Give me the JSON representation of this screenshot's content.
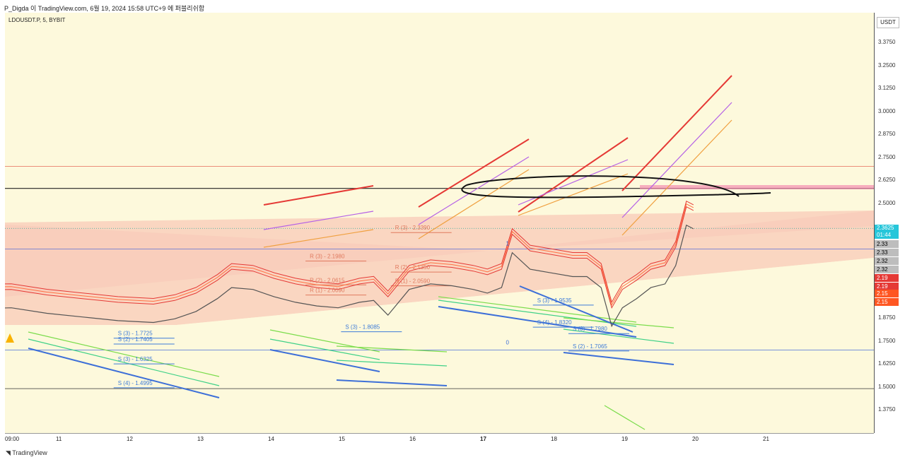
{
  "header": {
    "watermark_text": "P_Digda 이 TradingView.com, 6월 19, 2024 15:58 UTC+9 에 퍼블리쉬함"
  },
  "chart_data": {
    "type": "line",
    "title": "LDOUSDT.P, 5, BYBIT",
    "currency": "USDT",
    "x_ticks": [
      "09:00",
      "11",
      "12",
      "13",
      "14",
      "15",
      "16",
      "17",
      "18",
      "19",
      "20",
      "21"
    ],
    "y_ticks": [
      "3.3750",
      "3.2500",
      "3.1250",
      "3.0000",
      "2.8750",
      "2.7500",
      "2.6250",
      "2.5000",
      "1.8750",
      "1.7500",
      "1.6250",
      "1.5000",
      "1.3750"
    ],
    "ylim": [
      1.3,
      3.5
    ],
    "last_price": {
      "price": "2.3625",
      "countdown": "01:44",
      "color": "#26c6da"
    },
    "price_badges": [
      {
        "text": "2.33",
        "bg": "#bdbdbd",
        "fg": "#000"
      },
      {
        "text": "2.32",
        "bg": "#bdbdbd",
        "fg": "#000"
      },
      {
        "text": "2.19",
        "bg": "#e53935",
        "fg": "#fff"
      },
      {
        "text": "2.15",
        "bg": "#ff5722",
        "fg": "#fff"
      }
    ],
    "horizontal_levels": [
      2.7,
      2.58,
      1.7,
      1.49,
      2.25
    ],
    "level_labels": [
      {
        "text": "R (3) - 2.3390",
        "x": 15.4,
        "y": 2.355,
        "color": "#e07a5f"
      },
      {
        "text": "R (3) - 2.1980",
        "x": 14.2,
        "y": 2.2,
        "color": "#e07a5f"
      },
      {
        "text": "R (2) - 2.1350",
        "x": 15.4,
        "y": 2.14,
        "color": "#e07a5f"
      },
      {
        "text": "R (2) - 2.0615",
        "x": 14.2,
        "y": 2.07,
        "color": "#e07a5f"
      },
      {
        "text": "R (1) - 2.0590",
        "x": 15.4,
        "y": 2.065,
        "color": "#e07a5f"
      },
      {
        "text": "R (1) - 2.0090",
        "x": 14.2,
        "y": 2.015,
        "color": "#e07a5f"
      },
      {
        "text": "S (3) - 1.7725",
        "x": 11.5,
        "y": 1.78,
        "color": "#3d7bd9"
      },
      {
        "text": "S (2) - 1.7405",
        "x": 11.5,
        "y": 1.748,
        "color": "#3d7bd9"
      },
      {
        "text": "S (3) - 1.6325",
        "x": 11.5,
        "y": 1.64,
        "color": "#3d7bd9"
      },
      {
        "text": "S (4) - 1.4995",
        "x": 11.5,
        "y": 1.51,
        "color": "#3d7bd9"
      },
      {
        "text": "S (3) - 1.8085",
        "x": 14.7,
        "y": 1.815,
        "color": "#3d7bd9"
      },
      {
        "text": "S (4) - 1.8320",
        "x": 17.4,
        "y": 1.84,
        "color": "#3d7bd9"
      },
      {
        "text": "S (3) - 1.9535",
        "x": 17.4,
        "y": 1.96,
        "color": "#3d7bd9"
      },
      {
        "text": "S (3) - 1.7980",
        "x": 17.9,
        "y": 1.805,
        "color": "#3d7bd9"
      },
      {
        "text": "S (2) - 1.7065",
        "x": 17.9,
        "y": 1.71,
        "color": "#3d7bd9"
      }
    ],
    "marks": [
      {
        "text": "1",
        "x": 16.96,
        "y": 2.27
      },
      {
        "text": "0",
        "x": 16.96,
        "y": 1.73
      }
    ],
    "price_series": {
      "x": [
        9,
        9.5,
        10,
        10.5,
        11,
        11.5,
        12,
        12.3,
        12.6,
        12.9,
        13.1,
        13.4,
        13.7,
        14,
        14.3,
        14.6,
        14.9,
        15.1,
        15.3,
        15.6,
        15.9,
        16.2,
        16.5,
        16.7,
        16.9,
        17.05,
        17.3,
        17.6,
        17.9,
        18.1,
        18.3,
        18.45,
        18.6,
        18.8,
        19,
        19.2,
        19.35,
        19.5,
        19.6
      ],
      "y": [
        1.94,
        1.92,
        1.93,
        1.9,
        1.88,
        1.86,
        1.85,
        1.87,
        1.91,
        1.98,
        2.04,
        2.03,
        1.99,
        1.96,
        1.94,
        1.93,
        1.96,
        1.97,
        1.89,
        2.03,
        2.06,
        2.05,
        2.03,
        2.01,
        2.04,
        2.23,
        2.14,
        2.12,
        2.1,
        2.1,
        2.04,
        1.83,
        1.93,
        1.98,
        2.04,
        2.06,
        2.16,
        2.38,
        2.36
      ]
    }
  },
  "footer": {
    "brand": "TradingView"
  }
}
